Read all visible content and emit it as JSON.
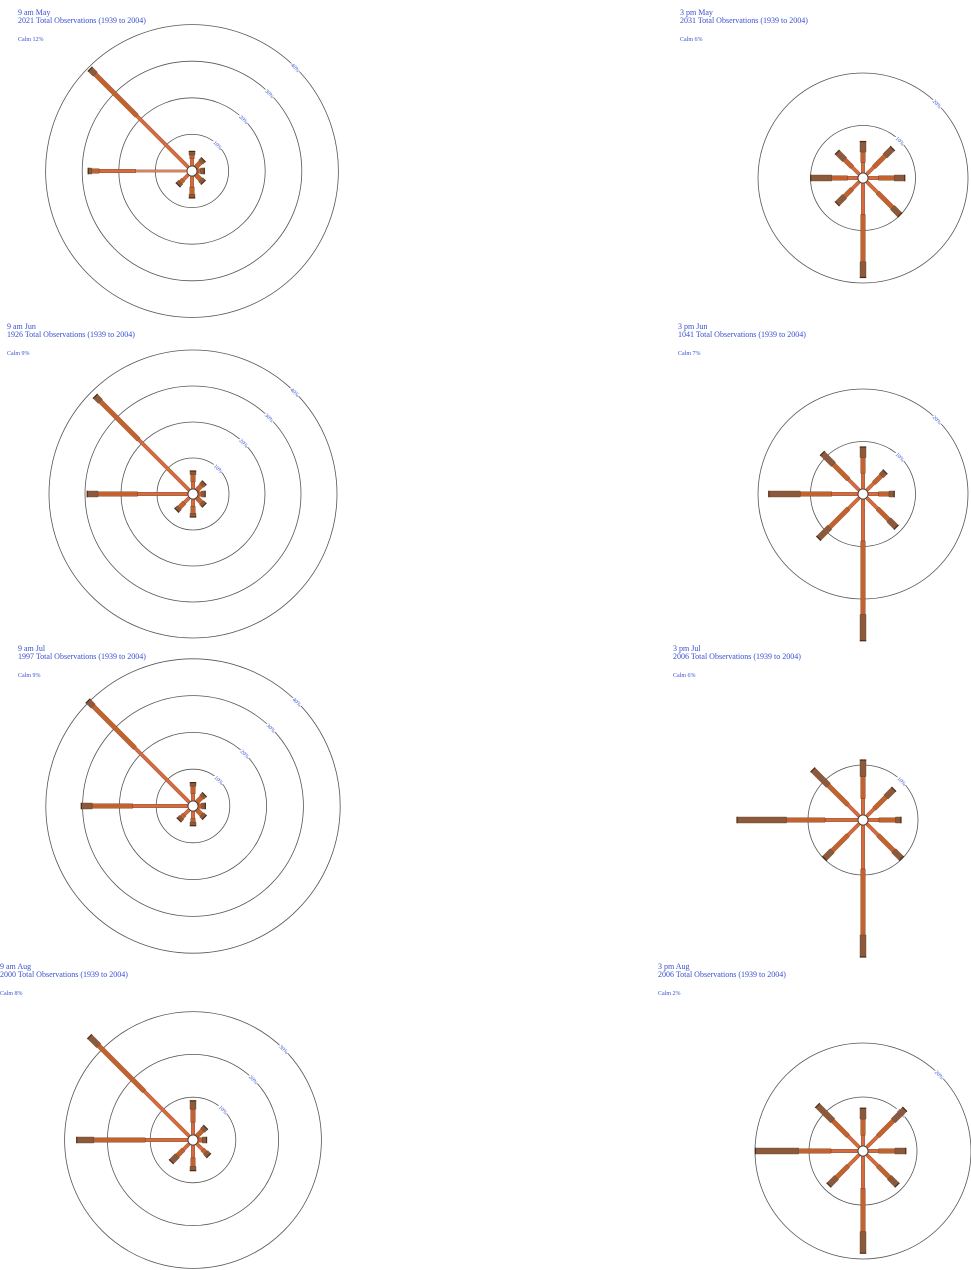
{
  "palette": {
    "text": "#3a4fd0",
    "ring": "#555555",
    "speed_colors": [
      "#f6dcc6",
      "#f1ad86",
      "#ea8c66",
      "#d96a3e",
      "#c4622e",
      "#8b5a3c"
    ]
  },
  "chart_data": [
    {
      "type": "windrose",
      "title_line1": "9 am May",
      "title_line2": "2021 Total Observations (1939 to 2004)",
      "calm": "Calm 12%",
      "ring_labels": [
        "10%",
        "20%",
        "30%",
        "40%"
      ],
      "ring_values": [
        10,
        20,
        30,
        40
      ],
      "directions": [
        "N",
        "NE",
        "E",
        "SE",
        "S",
        "SW",
        "W",
        "NW"
      ],
      "percent": [
        4,
        3,
        2,
        3,
        6,
        4,
        27,
        38
      ],
      "segments": [
        [
          2,
          1,
          1
        ],
        [
          2,
          1
        ],
        [
          1,
          1
        ],
        [
          2,
          1
        ],
        [
          3,
          2,
          1
        ],
        [
          2,
          1,
          1
        ],
        [
          14,
          10,
          2,
          1
        ],
        [
          20,
          16,
          2
        ]
      ]
    },
    {
      "type": "windrose",
      "title_line1": "3 pm May",
      "title_line2": "2031 Total Observations (1939 to 2004)",
      "calm": "Calm 6%",
      "ring_labels": [
        "10%",
        "20%"
      ],
      "ring_values": [
        10,
        20
      ],
      "directions": [
        "N",
        "NE",
        "E",
        "SE",
        "S",
        "SW",
        "W",
        "NW"
      ],
      "percent": [
        6,
        7,
        7,
        9,
        18,
        6,
        9,
        6
      ],
      "segments": [
        [
          2,
          2,
          2
        ],
        [
          2,
          3,
          2
        ],
        [
          2,
          3,
          2
        ],
        [
          3,
          4,
          2
        ],
        [
          6,
          9,
          3
        ],
        [
          2,
          2,
          2
        ],
        [
          2,
          3,
          4
        ],
        [
          2,
          2,
          2
        ]
      ]
    },
    {
      "type": "windrose",
      "title_line1": "9 am Jun",
      "title_line2": "1926 Total Observations (1939 to 2004)",
      "calm": "Calm 9%",
      "ring_labels": [
        "10%",
        "20%",
        "30%",
        "40%"
      ],
      "ring_values": [
        10,
        20,
        30,
        40
      ],
      "directions": [
        "N",
        "NE",
        "E",
        "SE",
        "S",
        "SW",
        "W",
        "NW"
      ],
      "percent": [
        5,
        3,
        2,
        3,
        5,
        5,
        28,
        37
      ],
      "segments": [
        [
          2,
          2,
          1
        ],
        [
          2,
          1
        ],
        [
          1,
          1
        ],
        [
          2,
          1
        ],
        [
          2,
          2,
          1
        ],
        [
          2,
          2,
          1
        ],
        [
          14,
          11,
          3
        ],
        [
          20,
          15,
          2
        ]
      ]
    },
    {
      "type": "windrose",
      "title_line1": "3 pm Jun",
      "title_line2": "1041 Total Observations (1939 to 2004)",
      "calm": "Calm 7%",
      "ring_labels": [
        "10%",
        "20%"
      ],
      "ring_values": [
        10,
        20
      ],
      "directions": [
        "N",
        "NE",
        "E",
        "SE",
        "S",
        "SW",
        "W",
        "NW"
      ],
      "percent": [
        8,
        5,
        5,
        8,
        27,
        11,
        17,
        10
      ],
      "segments": [
        [
          3,
          3,
          2
        ],
        [
          2,
          2,
          1
        ],
        [
          2,
          2,
          1
        ],
        [
          3,
          3,
          2
        ],
        [
          8,
          14,
          5
        ],
        [
          3,
          5,
          3
        ],
        [
          5,
          6,
          6
        ],
        [
          3,
          4,
          3
        ]
      ]
    },
    {
      "type": "windrose",
      "title_line1": "9 am Jul",
      "title_line2": "1997 Total Observations (1939 to 2004)",
      "calm": "Calm 9%",
      "ring_labels": [
        "10%",
        "20%",
        "30%",
        "40%"
      ],
      "ring_values": [
        10,
        20,
        30,
        40
      ],
      "directions": [
        "N",
        "NE",
        "E",
        "SE",
        "S",
        "SW",
        "W",
        "NW"
      ],
      "percent": [
        5,
        3,
        2,
        3,
        4,
        4,
        29,
        39
      ],
      "segments": [
        [
          2,
          2,
          1
        ],
        [
          2,
          1
        ],
        [
          1,
          1
        ],
        [
          2,
          1
        ],
        [
          2,
          1,
          1
        ],
        [
          2,
          1,
          1
        ],
        [
          15,
          11,
          3
        ],
        [
          21,
          16,
          2
        ]
      ]
    },
    {
      "type": "windrose",
      "title_line1": "3 pm Jul",
      "title_line2": "2006 Total Observations (1939 to 2004)",
      "calm": "Calm 6%",
      "ring_labels": [
        "10%"
      ],
      "ring_values": [
        10
      ],
      "directions": [
        "N",
        "NE",
        "E",
        "SE",
        "S",
        "SW",
        "W",
        "NW"
      ],
      "percent": [
        10,
        7,
        6,
        9,
        24,
        9,
        22,
        12
      ],
      "segments": [
        [
          3,
          4,
          3
        ],
        [
          2,
          3,
          2
        ],
        [
          2,
          3,
          1
        ],
        [
          3,
          4,
          2
        ],
        [
          8,
          12,
          4
        ],
        [
          3,
          4,
          2
        ],
        [
          6,
          7,
          9
        ],
        [
          3,
          5,
          4
        ]
      ]
    },
    {
      "type": "windrose",
      "title_line1": "9 am Aug",
      "title_line2": "2000 Total Observations (1939 to 2004)",
      "calm": "Calm 8%",
      "ring_labels": [
        "10%",
        "20%",
        "30%"
      ],
      "ring_values": [
        10,
        20,
        30
      ],
      "directions": [
        "N",
        "NE",
        "E",
        "SE",
        "S",
        "SW",
        "W",
        "NW"
      ],
      "percent": [
        8,
        3,
        2,
        4,
        6,
        6,
        26,
        33
      ],
      "segments": [
        [
          3,
          3,
          2
        ],
        [
          2,
          1
        ],
        [
          1,
          1
        ],
        [
          2,
          1,
          1
        ],
        [
          3,
          2,
          1
        ],
        [
          2,
          2,
          2
        ],
        [
          10,
          12,
          4
        ],
        [
          15,
          15,
          3
        ]
      ]
    },
    {
      "type": "windrose",
      "title_line1": "3 pm Aug",
      "title_line2": "2006 Total Observations (1939 to 2004)",
      "calm": "Calm 2%",
      "ring_labels": [
        "10%",
        "20%"
      ],
      "ring_values": [
        10,
        20
      ],
      "directions": [
        "N",
        "NE",
        "E",
        "SE",
        "S",
        "SW",
        "W",
        "NW"
      ],
      "percent": [
        7,
        10,
        7,
        8,
        18,
        8,
        19,
        11
      ],
      "segments": [
        [
          2,
          3,
          2
        ],
        [
          3,
          4,
          3
        ],
        [
          2,
          3,
          2
        ],
        [
          3,
          3,
          2
        ],
        [
          6,
          8,
          4
        ],
        [
          3,
          3,
          2
        ],
        [
          5,
          6,
          8
        ],
        [
          3,
          4,
          4
        ]
      ]
    }
  ]
}
